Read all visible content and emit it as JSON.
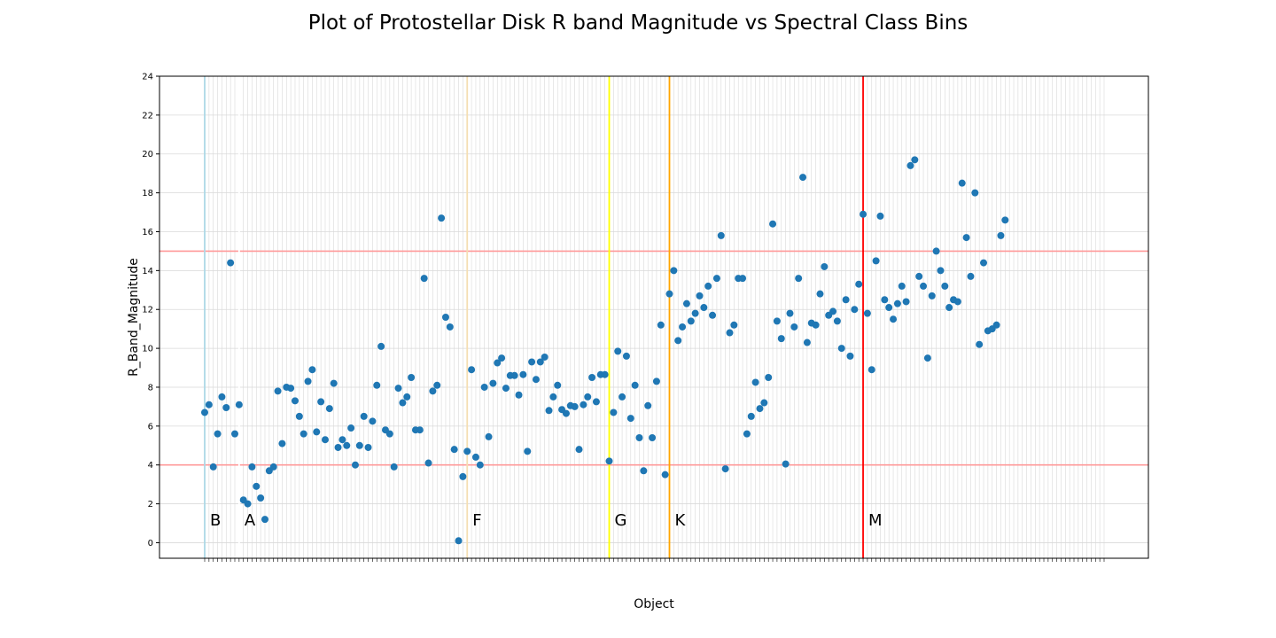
{
  "chart_data": {
    "type": "scatter",
    "title": "Plot of Protostellar Disk R band Magnitude vs Spectral Class Bins",
    "xlabel": "Object",
    "ylabel": "R_Band_Magnitude",
    "ylim": [
      -0.8,
      24
    ],
    "yticks": [
      0,
      2,
      4,
      6,
      8,
      10,
      12,
      14,
      16,
      18,
      20,
      22,
      24
    ],
    "grid": true,
    "x_tick_labels_note": "",
    "series": [
      {
        "color": "#1f77b4",
        "values": [
          6.7,
          7.1,
          3.9,
          5.6,
          7.5,
          6.95,
          14.4,
          5.6,
          7.1,
          2.2,
          2.0,
          3.9,
          2.9,
          2.3,
          1.2,
          3.7,
          3.9,
          7.8,
          5.1,
          8.0,
          7.95,
          7.3,
          6.5,
          5.6,
          8.3,
          8.9,
          5.7,
          7.25,
          5.3,
          6.9,
          8.2,
          4.9,
          5.3,
          5.0,
          5.9,
          4.0,
          5.0,
          6.5,
          4.9,
          6.25,
          8.1,
          10.1,
          5.8,
          5.6,
          3.9,
          7.95,
          7.2,
          7.5,
          8.5,
          5.8,
          5.8,
          13.6,
          4.1,
          7.8,
          8.1,
          16.7,
          11.6,
          11.1,
          4.8,
          0.1,
          3.4,
          4.7,
          8.9,
          4.4,
          4.0,
          8.0,
          5.45,
          8.2,
          9.25,
          9.5,
          7.95,
          8.6,
          8.6,
          7.6,
          8.65,
          4.7,
          9.3,
          8.4,
          9.3,
          9.55,
          6.8,
          7.5,
          8.1,
          6.85,
          6.65,
          7.05,
          7.0,
          4.8,
          7.1,
          7.5,
          8.5,
          7.25,
          8.65,
          8.65,
          4.2,
          6.7,
          9.85,
          7.5,
          9.6,
          6.4,
          8.1,
          5.4,
          3.7,
          7.05,
          5.4,
          8.3,
          11.2,
          3.5,
          12.8,
          14.0,
          10.4,
          11.1,
          12.3,
          11.4,
          11.8,
          12.7,
          12.1,
          13.2,
          11.7,
          13.6,
          15.8,
          3.8,
          10.8,
          11.2,
          13.6,
          13.6,
          5.6,
          6.5,
          8.25,
          6.9,
          7.2,
          8.5,
          16.4,
          11.4,
          10.5,
          4.05,
          11.8,
          11.1,
          13.6,
          18.8,
          10.3,
          11.3,
          11.2,
          12.8,
          14.2,
          11.7,
          11.9,
          11.4,
          10.0,
          12.5,
          9.6,
          12.0,
          13.3,
          16.9,
          11.8,
          8.9,
          14.5,
          16.8,
          12.5,
          12.1,
          11.5,
          12.3,
          13.2,
          12.4,
          19.4,
          19.7,
          13.7,
          13.2,
          9.5,
          12.7,
          15.0,
          14.0,
          13.2,
          12.1,
          12.5,
          12.4,
          18.5,
          15.7,
          13.7,
          18.0,
          10.2,
          14.4,
          10.9,
          11.0,
          11.2,
          15.8,
          16.6
        ]
      }
    ],
    "category_count": 210,
    "horizontal_lines": [
      {
        "y": 15,
        "color": "#ff9999"
      },
      {
        "y": 4,
        "color": "#ff9999"
      }
    ],
    "bins": [
      {
        "label": "B",
        "index": 0,
        "color": "#add8e6"
      },
      {
        "label": "A",
        "index": 8,
        "color": "#ffffff"
      },
      {
        "label": "F",
        "index": 61,
        "color": "#f5deb3"
      },
      {
        "label": "G",
        "index": 94,
        "color": "#ffff00"
      },
      {
        "label": "K",
        "index": 108,
        "color": "#ffa500"
      },
      {
        "label": "M",
        "index": 153,
        "color": "#ff0000"
      }
    ]
  }
}
